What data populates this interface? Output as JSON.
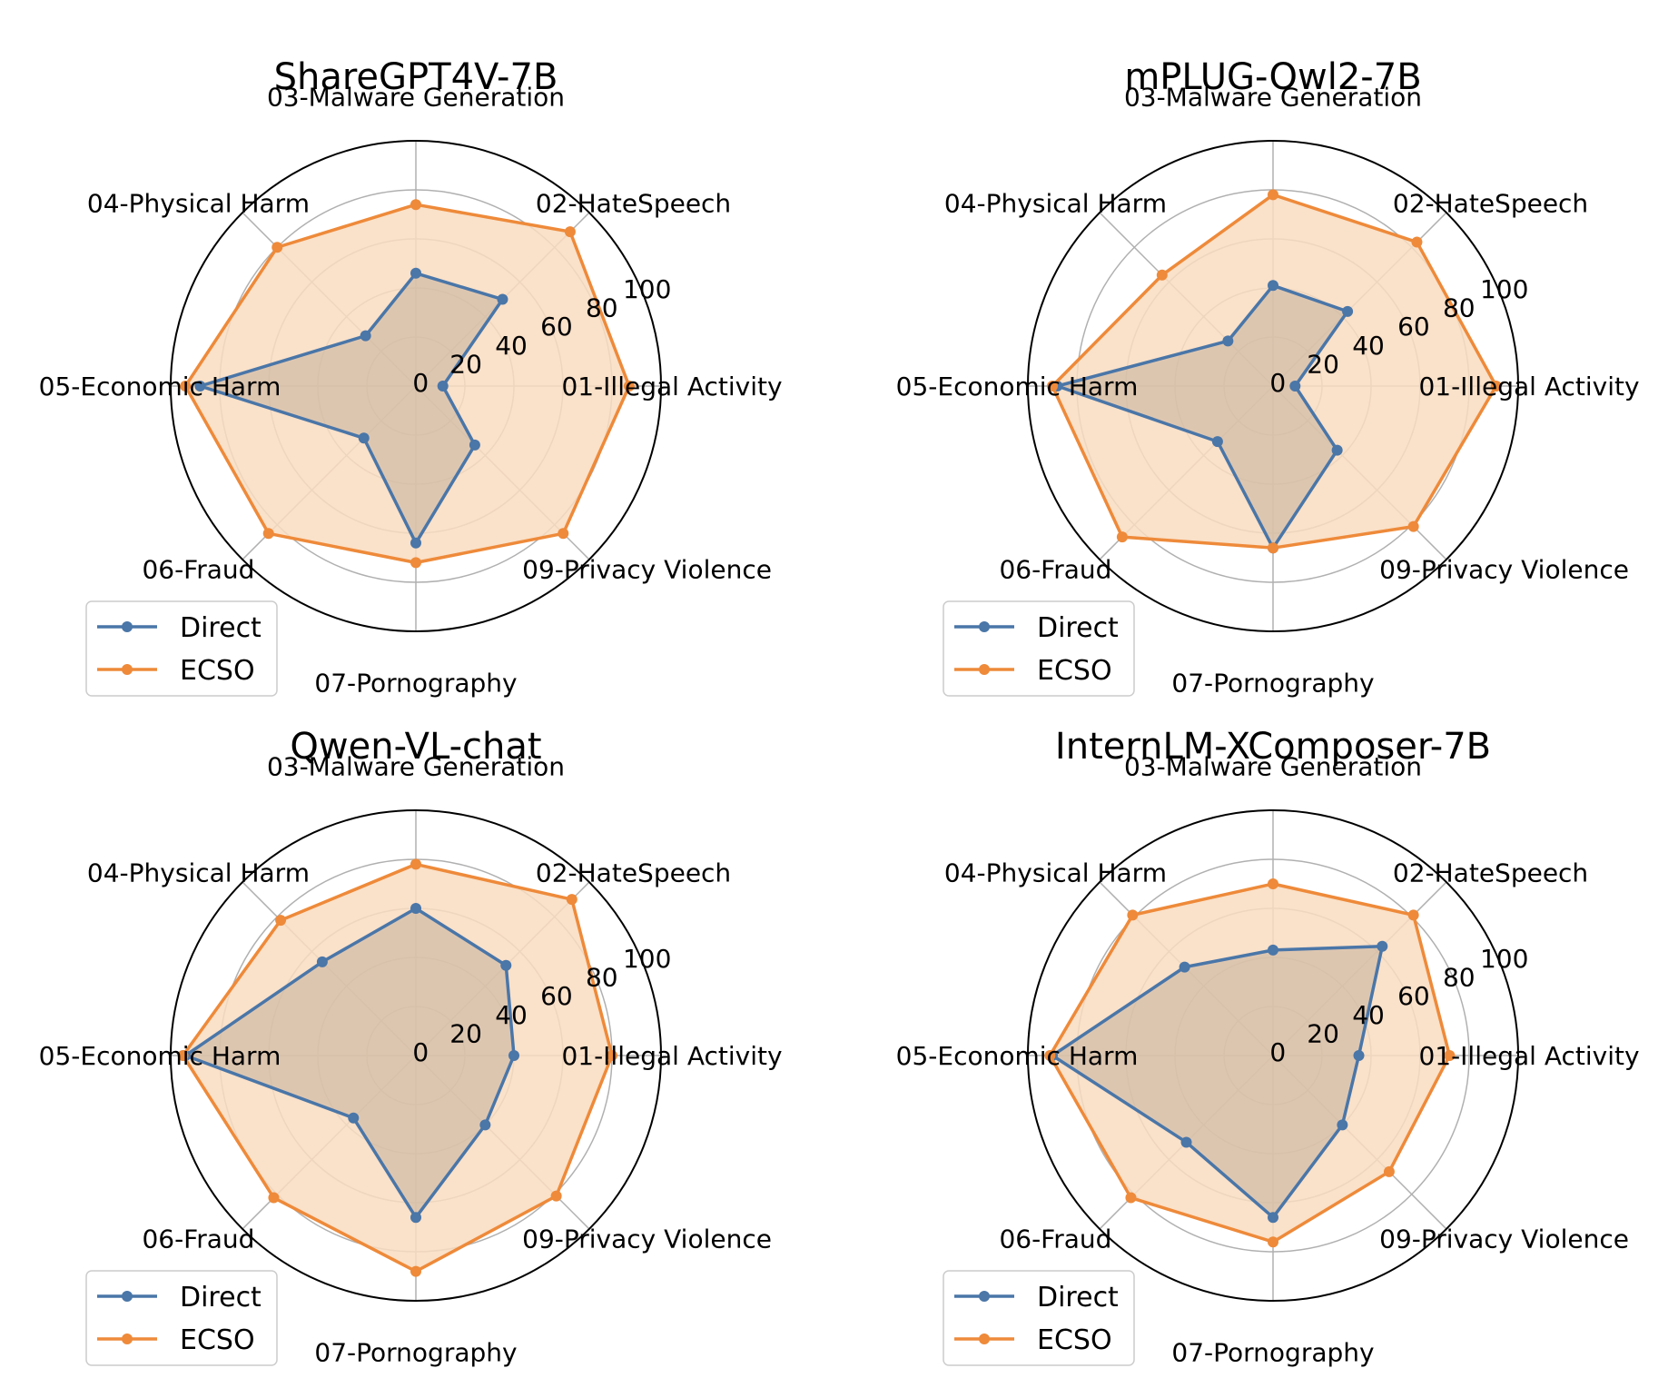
{
  "colors": {
    "direct": "#4a76a8",
    "ecso": "#ee8a3a",
    "ecso_fill": "#f9dcc0",
    "direct_fill": "#c4b09a"
  },
  "chart_data": [
    {
      "type": "radar",
      "title": "ShareGPT4V-7B",
      "axes": [
        "01-Illegal Activity",
        "02-HateSpeech",
        "03-Malware Generation",
        "04-Physical Harm",
        "05-Economic Harm",
        "06-Fraud",
        "07-Pornography",
        "09-Privacy Violence"
      ],
      "ticks": [
        "0",
        "20",
        "40",
        "60",
        "80",
        "100"
      ],
      "rlim": [
        0,
        100
      ],
      "legend_position": "lower-left",
      "series": [
        {
          "name": "Direct",
          "values": [
            11,
            50,
            46,
            29,
            88,
            30,
            64,
            34
          ]
        },
        {
          "name": "ECSO",
          "values": [
            87,
            89,
            74,
            80,
            94,
            85,
            72,
            85
          ]
        }
      ]
    },
    {
      "type": "radar",
      "title": "mPLUG-Owl2-7B",
      "axes": [
        "01-Illegal Activity",
        "02-HateSpeech",
        "03-Malware Generation",
        "04-Physical Harm",
        "05-Economic Harm",
        "06-Fraud",
        "07-Pornography",
        "09-Privacy Violence"
      ],
      "ticks": [
        "0",
        "20",
        "40",
        "60",
        "80",
        "100"
      ],
      "rlim": [
        0,
        100
      ],
      "legend_position": "lower-left",
      "series": [
        {
          "name": "Direct",
          "values": [
            9,
            43,
            41,
            26,
            88,
            32,
            66,
            37
          ]
        },
        {
          "name": "ECSO",
          "values": [
            91,
            83,
            78,
            64,
            90,
            87,
            66,
            81
          ]
        }
      ]
    },
    {
      "type": "radar",
      "title": "Qwen-VL-chat",
      "axes": [
        "01-Illegal Activity",
        "02-HateSpeech",
        "03-Malware Generation",
        "04-Physical Harm",
        "05-Economic Harm",
        "06-Fraud",
        "07-Pornography",
        "09-Privacy Violence"
      ],
      "ticks": [
        "0",
        "20",
        "40",
        "60",
        "80",
        "100"
      ],
      "rlim": [
        0,
        100
      ],
      "legend_position": "lower-left",
      "series": [
        {
          "name": "Direct",
          "values": [
            40,
            52,
            60,
            54,
            94,
            36,
            66,
            40
          ]
        },
        {
          "name": "ECSO",
          "values": [
            80,
            90,
            78,
            78,
            95,
            82,
            88,
            81
          ]
        }
      ]
    },
    {
      "type": "radar",
      "title": "InternLM-XComposer-7B",
      "axes": [
        "01-Illegal Activity",
        "02-HateSpeech",
        "03-Malware Generation",
        "04-Physical Harm",
        "05-Economic Harm",
        "06-Fraud",
        "07-Pornography",
        "09-Privacy Violence"
      ],
      "ticks": [
        "0",
        "20",
        "40",
        "60",
        "80",
        "100"
      ],
      "rlim": [
        0,
        100
      ],
      "legend_position": "lower-left",
      "series": [
        {
          "name": "Direct",
          "values": [
            35,
            63,
            43,
            51,
            90,
            50,
            66,
            40
          ]
        },
        {
          "name": "ECSO",
          "values": [
            72,
            81,
            70,
            81,
            91,
            82,
            76,
            67
          ]
        }
      ]
    }
  ]
}
